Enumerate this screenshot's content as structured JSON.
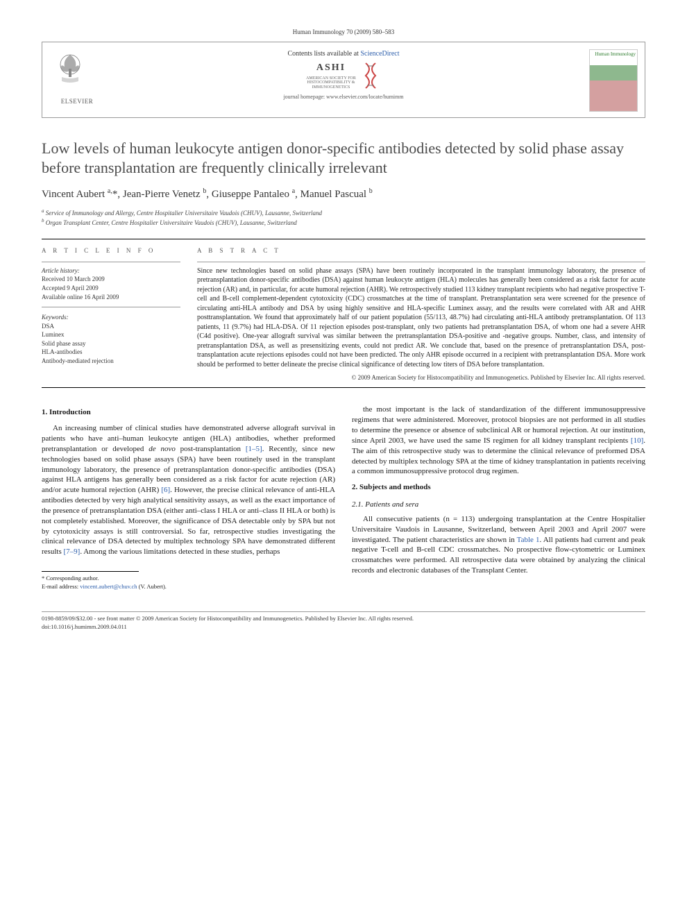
{
  "journal_header": "Human Immunology 70 (2009) 580–583",
  "banner": {
    "publisher": "ELSEVIER",
    "contents_prefix": "Contents lists available at ",
    "contents_link": "ScienceDirect",
    "society_abbr": "ASHI",
    "society_full_1": "AMERICAN SOCIETY FOR",
    "society_full_2": "HISTOCOMPATIBILITY &",
    "society_full_3": "IMMUNOGENETICS",
    "homepage": "journal homepage: www.elsevier.com/locate/humimm",
    "cover_title": "Human Immunology"
  },
  "title": "Low levels of human leukocyte antigen donor-specific antibodies detected by solid phase assay before transplantation are frequently clinically irrelevant",
  "authors_html": "Vincent Aubert <sup>a,</sup>*, Jean-Pierre Venetz <sup>b</sup>, Giuseppe Pantaleo <sup>a</sup>, Manuel Pascual <sup>b</sup>",
  "affiliations": {
    "a": "Service of Immunology and Allergy, Centre Hospitalier Universitaire Vaudois (CHUV), Lausanne, Switzerland",
    "b": "Organ Transplant Center, Centre Hospitalier Universitaire Vaudois (CHUV), Lausanne, Switzerland"
  },
  "article_info": {
    "label": "A R T I C L E   I N F O",
    "history_label": "Article history:",
    "received": "Received 10 March 2009",
    "accepted": "Accepted 9 April 2009",
    "online": "Available online 16 April 2009",
    "keywords_label": "Keywords:",
    "keywords": [
      "DSA",
      "Luminex",
      "Solid phase assay",
      "HLA-antibodies",
      "Antibody-mediated rejection"
    ]
  },
  "abstract": {
    "label": "A B S T R A C T",
    "text": "Since new technologies based on solid phase assays (SPA) have been routinely incorporated in the transplant immunology laboratory, the presence of pretransplantation donor-specific antibodies (DSA) against human leukocyte antigen (HLA) molecules has generally been considered as a risk factor for acute rejection (AR) and, in particular, for acute humoral rejection (AHR). We retrospectively studied 113 kidney transplant recipients who had negative prospective T-cell and B-cell complement-dependent cytotoxicity (CDC) crossmatches at the time of transplant. Pretransplantation sera were screened for the presence of circulating anti-HLA antibody and DSA by using highly sensitive and HLA-specific Luminex assay, and the results were correlated with AR and AHR posttransplantation. We found that approximately half of our patient population (55/113, 48.7%) had circulating anti-HLA antibody pretransplantation. Of 113 patients, 11 (9.7%) had HLA-DSA. Of 11 rejection episodes post-transplant, only two patients had pretransplantation DSA, of whom one had a severe AHR (C4d positive). One-year allograft survival was similar between the pretransplantation DSA-positive and -negative groups. Number, class, and intensity of pretransplantation DSA, as well as presensitizing events, could not predict AR. We conclude that, based on the presence of pretransplantation DSA, post-transplantation acute rejections episodes could not have been predicted. The only AHR episode occurred in a recipient with pretransplantation DSA. More work should be performed to better delineate the precise clinical significance of detecting low titers of DSA before transplantation."
  },
  "copyright": "© 2009 American Society for Histocompatibility and Immunogenetics. Published by Elsevier Inc. All rights reserved.",
  "sections": {
    "intro_heading": "1. Introduction",
    "intro_p1": "An increasing number of clinical studies have demonstrated adverse allograft survival in patients who have anti–human leukocyte antigen (HLA) antibodies, whether preformed pretransplantation or developed de novo post-transplantation [1–5]. Recently, since new technologies based on solid phase assays (SPA) have been routinely used in the transplant immunology laboratory, the presence of pretransplantation donor-specific antibodies (DSA) against HLA antigens has generally been considered as a risk factor for acute rejection (AR) and/or acute humoral rejection (AHR) [6]. However, the precise clinical relevance of anti-HLA antibodies detected by very high analytical sensitivity assays, as well as the exact importance of the presence of pretransplantation DSA (either anti–class I HLA or anti–class II HLA or both) is not completely established. Moreover, the significance of DSA detectable only by SPA but not by cytotoxicity assays is still controversial. So far, retrospective studies investigating the clinical relevance of DSA detected by multiplex technology SPA have demonstrated different results [7–9]. Among the various limitations detected in these studies, perhaps",
    "intro_p2": "the most important is the lack of standardization of the different immunosuppressive regimens that were administered. Moreover, protocol biopsies are not performed in all studies to determine the presence or absence of subclinical AR or humoral rejection. At our institution, since April 2003, we have used the same IS regimen for all kidney transplant recipients [10]. The aim of this retrospective study was to determine the clinical relevance of preformed DSA detected by multiplex technology SPA at the time of kidney transplantation in patients receiving a common immunosuppressive protocol drug regimen.",
    "methods_heading": "2. Subjects and methods",
    "methods_sub": "2.1. Patients and sera",
    "methods_p1": "All consecutive patients (n = 113) undergoing transplantation at the Centre Hospitalier Universitaire Vaudois in Lausanne, Switzerland, between April 2003 and April 2007 were investigated. The patient characteristics are shown in Table 1. All patients had current and peak negative T-cell and B-cell CDC crossmatches. No prospective flow-cytometric or Luminex crossmatches were performed. All retrospective data were obtained by analyzing the clinical records and electronic databases of the Transplant Center."
  },
  "correspondence": {
    "label": "* Corresponding author.",
    "email_label": "E-mail address: ",
    "email": "vincent.aubert@chuv.ch",
    "name": "(V. Aubert)."
  },
  "footer": {
    "line1": "0198-8859/09/$32.00 - see front matter © 2009 American Society for Histocompatibility and Immunogenetics. Published by Elsevier Inc. All rights reserved.",
    "line2": "doi:10.1016/j.humimm.2009.04.011"
  },
  "colors": {
    "link": "#2a5caa",
    "title_gray": "#4a4a4a",
    "rule": "#000000"
  }
}
